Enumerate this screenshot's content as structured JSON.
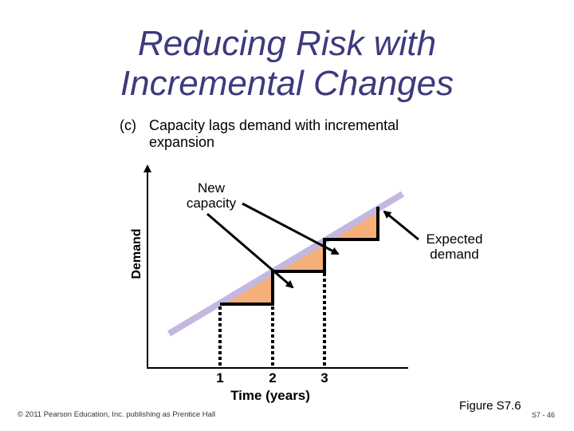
{
  "title": {
    "line1": "Reducing Risk with",
    "line2": "Incremental Changes"
  },
  "subtitle": {
    "tag": "(c)",
    "line1": "Capacity lags demand with incremental",
    "line2": "expansion"
  },
  "diagram": {
    "y_axis_label": "Demand",
    "x_axis_label": "Time (years)",
    "x_ticks": [
      "1",
      "2",
      "3"
    ],
    "callout_new_capacity": "New capacity",
    "callout_expected_demand": "Expected demand",
    "colors": {
      "demand_line": "#c4b8e0",
      "gap_fill": "#f5b07a",
      "capacity_step": "#000000",
      "axis": "#000000",
      "title": "#3d3a7c"
    }
  },
  "footer": {
    "figure": "Figure S7.6",
    "copyright": "© 2011 Pearson Education, Inc. publishing as Prentice Hall",
    "page": "S7 - 46"
  }
}
